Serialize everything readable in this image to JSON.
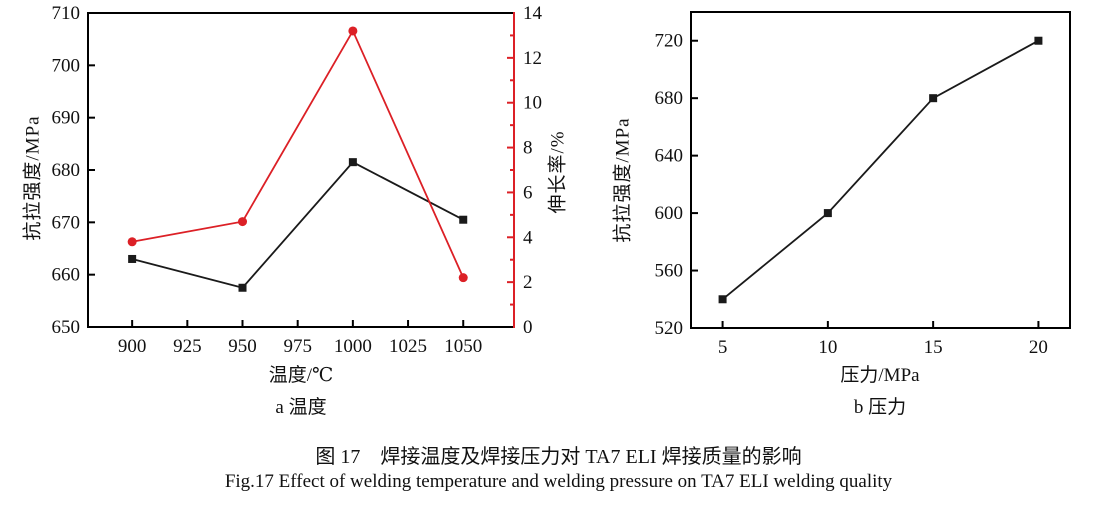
{
  "figure": {
    "caption_zh": "图 17　焊接温度及焊接压力对 TA7 ELI 焊接质量的影响",
    "caption_en": "Fig.17 Effect of welding temperature and welding pressure on TA7 ELI welding quality"
  },
  "colors": {
    "axis": "#000000",
    "black_series": "#1a1a1a",
    "red_series": "#dc2026",
    "tick_label": "#111111"
  },
  "chart_data": [
    {
      "id": "a",
      "type": "line",
      "subtitle": "a  温度",
      "xlabel": "温度/℃",
      "ylabel_left": "抗拉强度/MPa",
      "ylabel_right": "伸长率/%",
      "x": [
        900,
        950,
        1000,
        1050
      ],
      "x_ticks": [
        900,
        925,
        950,
        975,
        1000,
        1025,
        1050
      ],
      "xlim": [
        880,
        1073
      ],
      "y_left": {
        "ticks": [
          650,
          660,
          670,
          680,
          690,
          700,
          710
        ],
        "lim": [
          650,
          710
        ]
      },
      "y_right": {
        "ticks": [
          0,
          2,
          4,
          6,
          8,
          10,
          12,
          14
        ],
        "lim": [
          0,
          14
        ],
        "minor_step": 1,
        "color": "#dc2026"
      },
      "right_axis_color": "#dc2026",
      "legend": "none",
      "grid": false,
      "series": [
        {
          "name": "抗拉强度",
          "axis": "left",
          "color": "#1a1a1a",
          "marker": "square",
          "values": [
            663,
            657.5,
            681.5,
            670.5
          ]
        },
        {
          "name": "伸长率",
          "axis": "right",
          "color": "#dc2026",
          "marker": "circle",
          "values": [
            3.8,
            4.7,
            13.2,
            2.2
          ]
        }
      ]
    },
    {
      "id": "b",
      "type": "line",
      "subtitle": "b  压力",
      "xlabel": "压力/MPa",
      "ylabel_left": "抗拉强度/MPa",
      "x": [
        5,
        10,
        15,
        20
      ],
      "x_ticks": [
        5,
        10,
        15,
        20
      ],
      "xlim": [
        3.5,
        21.5
      ],
      "y_left": {
        "ticks": [
          520,
          560,
          600,
          640,
          680,
          720
        ],
        "lim": [
          520,
          740
        ]
      },
      "legend": "none",
      "grid": false,
      "series": [
        {
          "name": "抗拉强度",
          "axis": "left",
          "color": "#1a1a1a",
          "marker": "square",
          "values": [
            540,
            600,
            680,
            720
          ]
        }
      ]
    }
  ]
}
